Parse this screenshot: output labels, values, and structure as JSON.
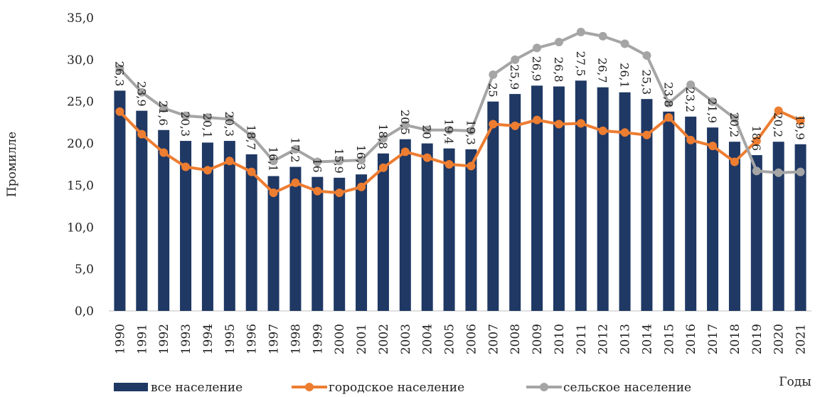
{
  "chart_data": {
    "type": "bar_line",
    "categories": [
      "1990",
      "1991",
      "1992",
      "1993",
      "1994",
      "1995",
      "1996",
      "1997",
      "1998",
      "1999",
      "2000",
      "2001",
      "2002",
      "2003",
      "2004",
      "2005",
      "2006",
      "2007",
      "2008",
      "2009",
      "2010",
      "2011",
      "2012",
      "2013",
      "2014",
      "2015",
      "2016",
      "2017",
      "2018",
      "2019",
      "2020",
      "2021"
    ],
    "series": [
      {
        "name": "все население",
        "kind": "bar",
        "color": "#1f3864",
        "values": [
          26.3,
          23.9,
          21.6,
          20.3,
          20.1,
          20.3,
          18.7,
          16.1,
          17.2,
          16,
          15.9,
          16.3,
          18.8,
          20.5,
          20,
          19.4,
          19.3,
          25,
          25.9,
          26.9,
          26.8,
          27.5,
          26.7,
          26.1,
          25.3,
          23.8,
          23.2,
          21.9,
          20.2,
          18.6,
          20.2,
          19.9
        ],
        "value_labels": [
          "26,3",
          "23,9",
          "21,6",
          "20,3",
          "20,1",
          "20,3",
          "18,7",
          "16,1",
          "17,2",
          "16",
          "15,9",
          "16,3",
          "18,8",
          "20,5",
          "20",
          "19,4",
          "19,3",
          "25",
          "25,9",
          "26,9",
          "26,8",
          "27,5",
          "26,7",
          "26,1",
          "25,3",
          "23,8",
          "23,2",
          "21,9",
          "20,2",
          "18,6",
          "20,2",
          "19,9"
        ]
      },
      {
        "name": "городское население",
        "kind": "line",
        "color": "#ed7d31",
        "values": [
          23.8,
          21.1,
          18.9,
          17.2,
          16.8,
          17.9,
          16.6,
          14.1,
          15.3,
          14.3,
          14.1,
          14.8,
          17.1,
          19.0,
          18.3,
          17.5,
          17.3,
          22.3,
          22.1,
          22.8,
          22.3,
          22.4,
          21.5,
          21.3,
          21.0,
          23.1,
          20.4,
          19.7,
          17.8,
          20.3,
          23.9,
          22.7
        ]
      },
      {
        "name": "сельское население",
        "kind": "line",
        "color": "#a5a5a5",
        "values": [
          28.9,
          26.1,
          24.2,
          23.3,
          23.1,
          22.9,
          20.9,
          17.9,
          19.3,
          17.8,
          17.9,
          18.0,
          20.6,
          22.2,
          21.6,
          21.6,
          21.5,
          28.2,
          30.0,
          31.4,
          32.1,
          33.3,
          32.8,
          31.9,
          30.5,
          24.8,
          27.0,
          25.0,
          23.0,
          16.7,
          16.5,
          16.6
        ]
      }
    ],
    "y_label": "Промилле",
    "x_label": "Годы",
    "ylim": [
      0,
      35
    ],
    "yticks": [
      {
        "value": 0,
        "label": "0,0"
      },
      {
        "value": 5,
        "label": "5,0"
      },
      {
        "value": 10,
        "label": "10,0"
      },
      {
        "value": 15,
        "label": "15,0"
      },
      {
        "value": 20,
        "label": "20,0"
      },
      {
        "value": 25,
        "label": "25,0"
      },
      {
        "value": 30,
        "label": "30,0"
      },
      {
        "value": 35,
        "label": "35,0"
      }
    ]
  }
}
